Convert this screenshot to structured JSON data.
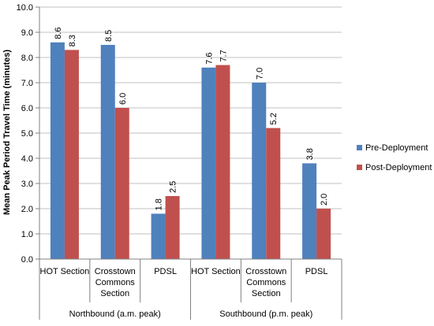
{
  "chart_data": {
    "type": "bar",
    "ylabel": "Mean Peak Period Travel Time (minutes)",
    "ylim": [
      0,
      10
    ],
    "yticks": [
      "0.0",
      "1.0",
      "2.0",
      "3.0",
      "4.0",
      "5.0",
      "6.0",
      "7.0",
      "8.0",
      "9.0",
      "10.0"
    ],
    "grid": true,
    "legend_position": "right",
    "groups": [
      {
        "label": "Northbound (a.m. peak)",
        "categories": [
          {
            "lines": [
              "HOT Section"
            ]
          },
          {
            "lines": [
              "Crosstown",
              "Commons",
              "Section"
            ]
          },
          {
            "lines": [
              "PDSL"
            ]
          }
        ]
      },
      {
        "label": "Southbound (p.m. peak)",
        "categories": [
          {
            "lines": [
              "HOT Section"
            ]
          },
          {
            "lines": [
              "Crosstown",
              "Commons",
              "Section"
            ]
          },
          {
            "lines": [
              "PDSL"
            ]
          }
        ]
      }
    ],
    "series": [
      {
        "name": "Pre-Deployment",
        "color": "#4f81bd",
        "values": [
          8.6,
          8.5,
          1.8,
          7.6,
          7.0,
          3.8
        ],
        "labels": [
          "8.6",
          "8.5",
          "1.8",
          "7.6",
          "7.0",
          "3.8"
        ]
      },
      {
        "name": "Post-Deployment",
        "color": "#c0504d",
        "values": [
          8.3,
          6.0,
          2.5,
          7.7,
          5.2,
          2.0
        ],
        "labels": [
          "8.3",
          "6.0",
          "2.5",
          "7.7",
          "5.2",
          "2.0"
        ]
      }
    ]
  }
}
